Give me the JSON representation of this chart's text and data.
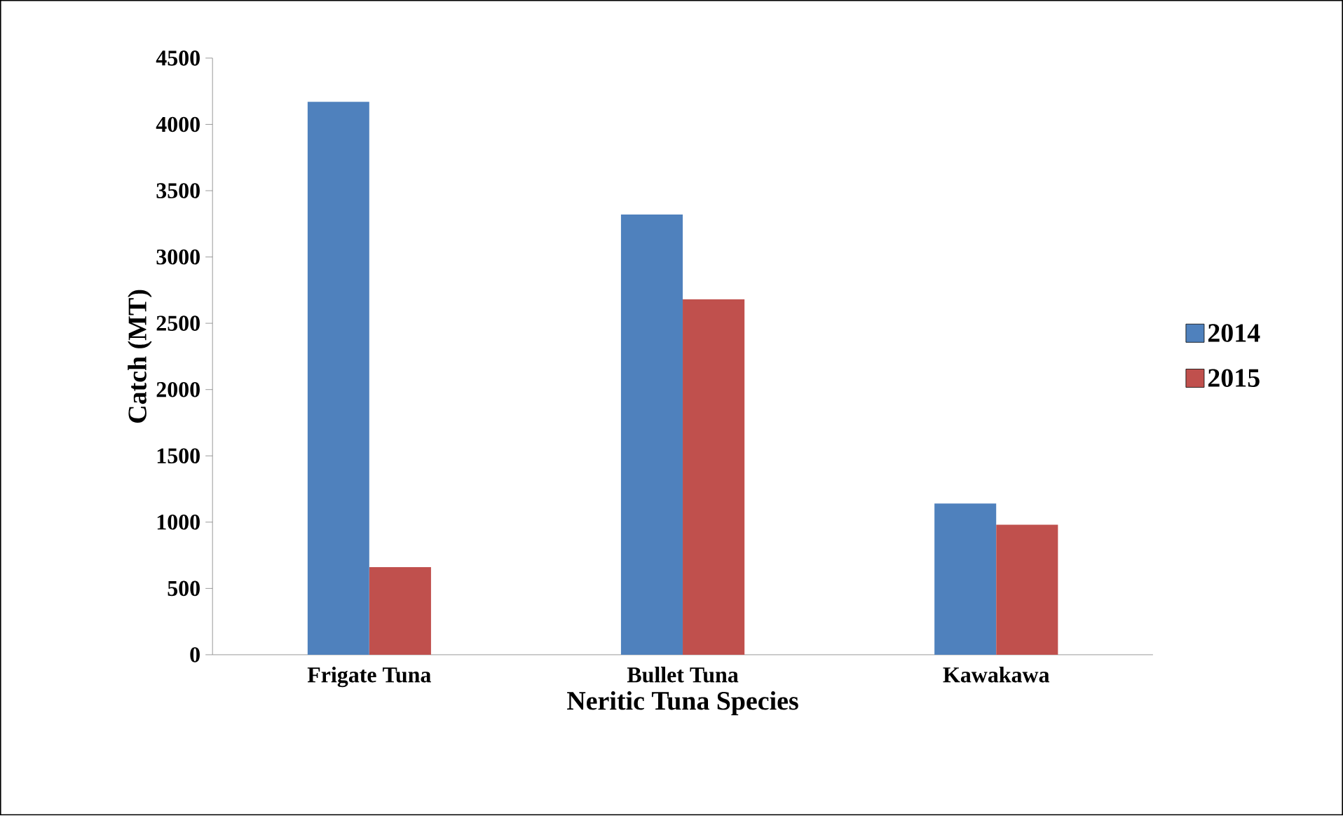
{
  "chart_data": {
    "type": "bar",
    "xlabel": "Neritic Tuna Species",
    "ylabel": "Catch (MT)",
    "categories": [
      "Frigate Tuna",
      "Bullet Tuna",
      "Kawakawa"
    ],
    "series": [
      {
        "name": "2014",
        "color": "#4f81bd",
        "values": [
          4170,
          3320,
          1140
        ]
      },
      {
        "name": "2015",
        "color": "#c0504d",
        "values": [
          660,
          2680,
          980
        ]
      }
    ],
    "ylim": [
      0,
      4500
    ],
    "yticks": [
      0,
      500,
      1000,
      1500,
      2000,
      2500,
      3000,
      3500,
      4000,
      4500
    ],
    "grid": false,
    "legend": "right"
  }
}
